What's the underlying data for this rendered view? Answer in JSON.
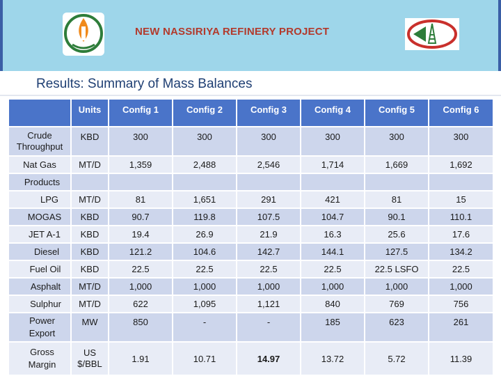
{
  "banner": {
    "title": "NEW NASSIRIYA REFINERY PROJECT",
    "left_logo_text": "أوريا",
    "colors": {
      "banner_bg": "#9ed6ea",
      "title": "#b23a2c",
      "border": "#3a5fa6"
    }
  },
  "slide": {
    "title": "Results: Summary of Mass Balances"
  },
  "table": {
    "headers": [
      "",
      "Units",
      "Config 1",
      "Config 2",
      "Config 3",
      "Config 4",
      "Config 5",
      "Config 6"
    ],
    "rows": [
      {
        "name": "Crude Throughput",
        "name_line1": "Crude",
        "name_line2": "Throughput",
        "unit": "KBD",
        "values": [
          "300",
          "300",
          "300",
          "300",
          "300",
          "300"
        ]
      },
      {
        "name": "Nat Gas",
        "unit": "MT/D",
        "values": [
          "1,359",
          "2,488",
          "2,546",
          "1,714",
          "1,669",
          "1,692"
        ]
      },
      {
        "name": "Products",
        "unit": "",
        "values": [
          "",
          "",
          "",
          "",
          "",
          ""
        ]
      },
      {
        "name": "LPG",
        "unit": "MT/D",
        "values": [
          "81",
          "1,651",
          "291",
          "421",
          "81",
          "15"
        ]
      },
      {
        "name": "MOGAS",
        "unit": "KBD",
        "values": [
          "90.7",
          "119.8",
          "107.5",
          "104.7",
          "90.1",
          "110.1"
        ]
      },
      {
        "name": "JET A-1",
        "unit": "KBD",
        "values": [
          "19.4",
          "26.9",
          "21.9",
          "16.3",
          "25.6",
          "17.6"
        ]
      },
      {
        "name": "Diesel",
        "unit": "KBD",
        "values": [
          "121.2",
          "104.6",
          "142.7",
          "144.1",
          "127.5",
          "134.2"
        ]
      },
      {
        "name": "Fuel Oil",
        "unit": "KBD",
        "values": [
          "22.5",
          "22.5",
          "22.5",
          "22.5",
          "22.5 LSFO",
          "22.5"
        ]
      },
      {
        "name": "Asphalt",
        "unit": "MT/D",
        "values": [
          "1,000",
          "1,000",
          "1,000",
          "1,000",
          "1,000",
          "1,000"
        ]
      },
      {
        "name": "Sulphur",
        "unit": "MT/D",
        "values": [
          "622",
          "1,095",
          "1,121",
          "840",
          "769",
          "756"
        ]
      },
      {
        "name": "Power Export",
        "name_line1": "Power",
        "name_line2": "Export",
        "unit": "MW",
        "values": [
          "850",
          "-",
          "-",
          "185",
          "623",
          "261"
        ]
      },
      {
        "name": "Gross Margin",
        "name_line1": "Gross",
        "name_line2": "Margin",
        "unit": "US $/BBL",
        "unit_line1": "US",
        "unit_line2": "$/BBL",
        "values": [
          "1.91",
          "10.71",
          "14.97",
          "13.72",
          "5.72",
          "11.39"
        ]
      }
    ],
    "colors": {
      "header": "#4a74c9",
      "row_dark": "#cdd6ec",
      "row_light": "#e8ecf6"
    }
  }
}
